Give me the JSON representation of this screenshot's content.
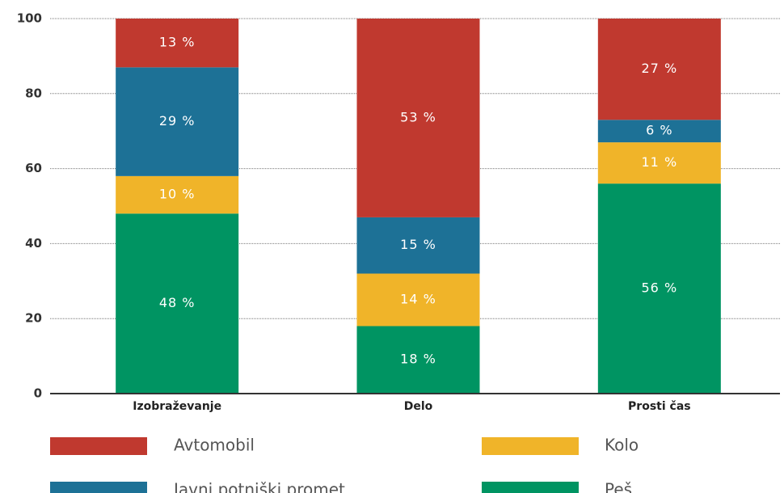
{
  "chart_data": {
    "type": "stacked_bar",
    "categories": [
      "Izobraževanje",
      "Delo",
      "Prosti čas"
    ],
    "series": [
      {
        "name": "Peš",
        "color": "#009462",
        "values": [
          48,
          18,
          56
        ],
        "value_labels": [
          "48 %",
          "18 %",
          "56 %"
        ]
      },
      {
        "name": "Kolo",
        "color": "#f0b429",
        "values": [
          10,
          14,
          11
        ],
        "value_labels": [
          "10 %",
          "14 %",
          "11 %"
        ]
      },
      {
        "name": "Javni potniški promet",
        "color": "#1d7196",
        "values": [
          29,
          15,
          6
        ],
        "value_labels": [
          "29 %",
          "15 %",
          "6 %"
        ]
      },
      {
        "name": "Avtomobil",
        "color": "#c0392f",
        "values": [
          13,
          53,
          27
        ],
        "value_labels": [
          "13 %",
          "53 %",
          "27 %"
        ]
      }
    ],
    "ylim": [
      0,
      100
    ],
    "yticks": [
      0,
      20,
      40,
      60,
      80,
      100
    ],
    "grid": true
  }
}
